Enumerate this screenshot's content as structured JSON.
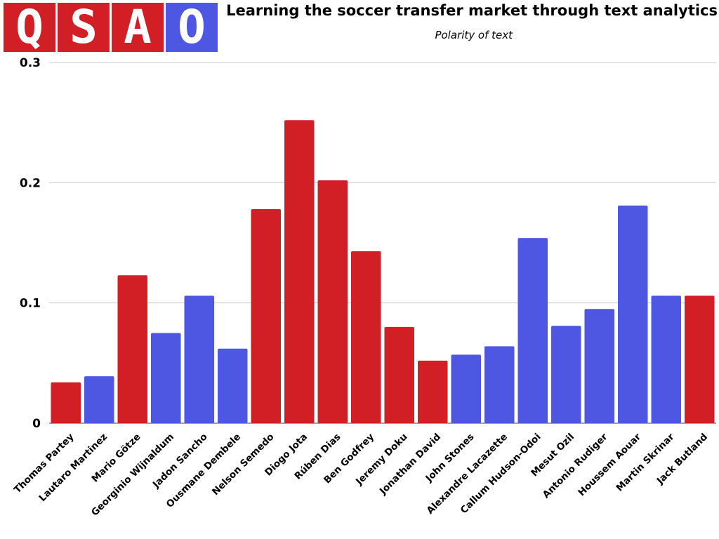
{
  "logo": {
    "letters": [
      {
        "char": "Q",
        "color": "#d21f26"
      },
      {
        "char": "S",
        "color": "#d21f26"
      },
      {
        "char": "A",
        "color": "#d21f26"
      },
      {
        "char": "O",
        "color": "#4e57e2"
      }
    ]
  },
  "chart_data": {
    "type": "bar",
    "title": "Learning the soccer transfer market through text analytics",
    "subtitle": "Polarity of text",
    "xlabel": "",
    "ylabel": "",
    "ylim": [
      0,
      0.3
    ],
    "yticks": [
      {
        "value": 0,
        "label": "0"
      },
      {
        "value": 0.1,
        "label": "0.1"
      },
      {
        "value": 0.2,
        "label": "0.2"
      },
      {
        "value": 0.3,
        "label": "0.3"
      }
    ],
    "grid": true,
    "legend": "none",
    "colors": {
      "red": "#d21f26",
      "blue": "#4e57e2"
    },
    "categories": [
      "Thomas Partey",
      "Lautaro Martinez",
      "Mario Götze",
      "Georginio Wijnaldum",
      "Jadon Sancho",
      "Ousmane Dembele",
      "Nelson Semedo",
      "Diogo Jota",
      "Rúben Dias",
      "Ben Godfrey",
      "Jeremy Doku",
      "Jonathan David",
      "John Stones",
      "Alexandre Lacazette",
      "Callum Hudson-Odoi",
      "Mesut Ozil",
      "Antonio Rudiger",
      "Houssem Aouar",
      "Martin Skrinar",
      "Jack Butland"
    ],
    "values": [
      0.034,
      0.039,
      0.123,
      0.075,
      0.106,
      0.062,
      0.178,
      0.252,
      0.202,
      0.143,
      0.08,
      0.052,
      0.057,
      0.064,
      0.154,
      0.081,
      0.095,
      0.181,
      0.106,
      0.106
    ],
    "bar_colors": [
      "red",
      "blue",
      "red",
      "blue",
      "blue",
      "blue",
      "red",
      "red",
      "red",
      "red",
      "red",
      "red",
      "blue",
      "blue",
      "blue",
      "blue",
      "blue",
      "blue",
      "blue",
      "red"
    ]
  }
}
